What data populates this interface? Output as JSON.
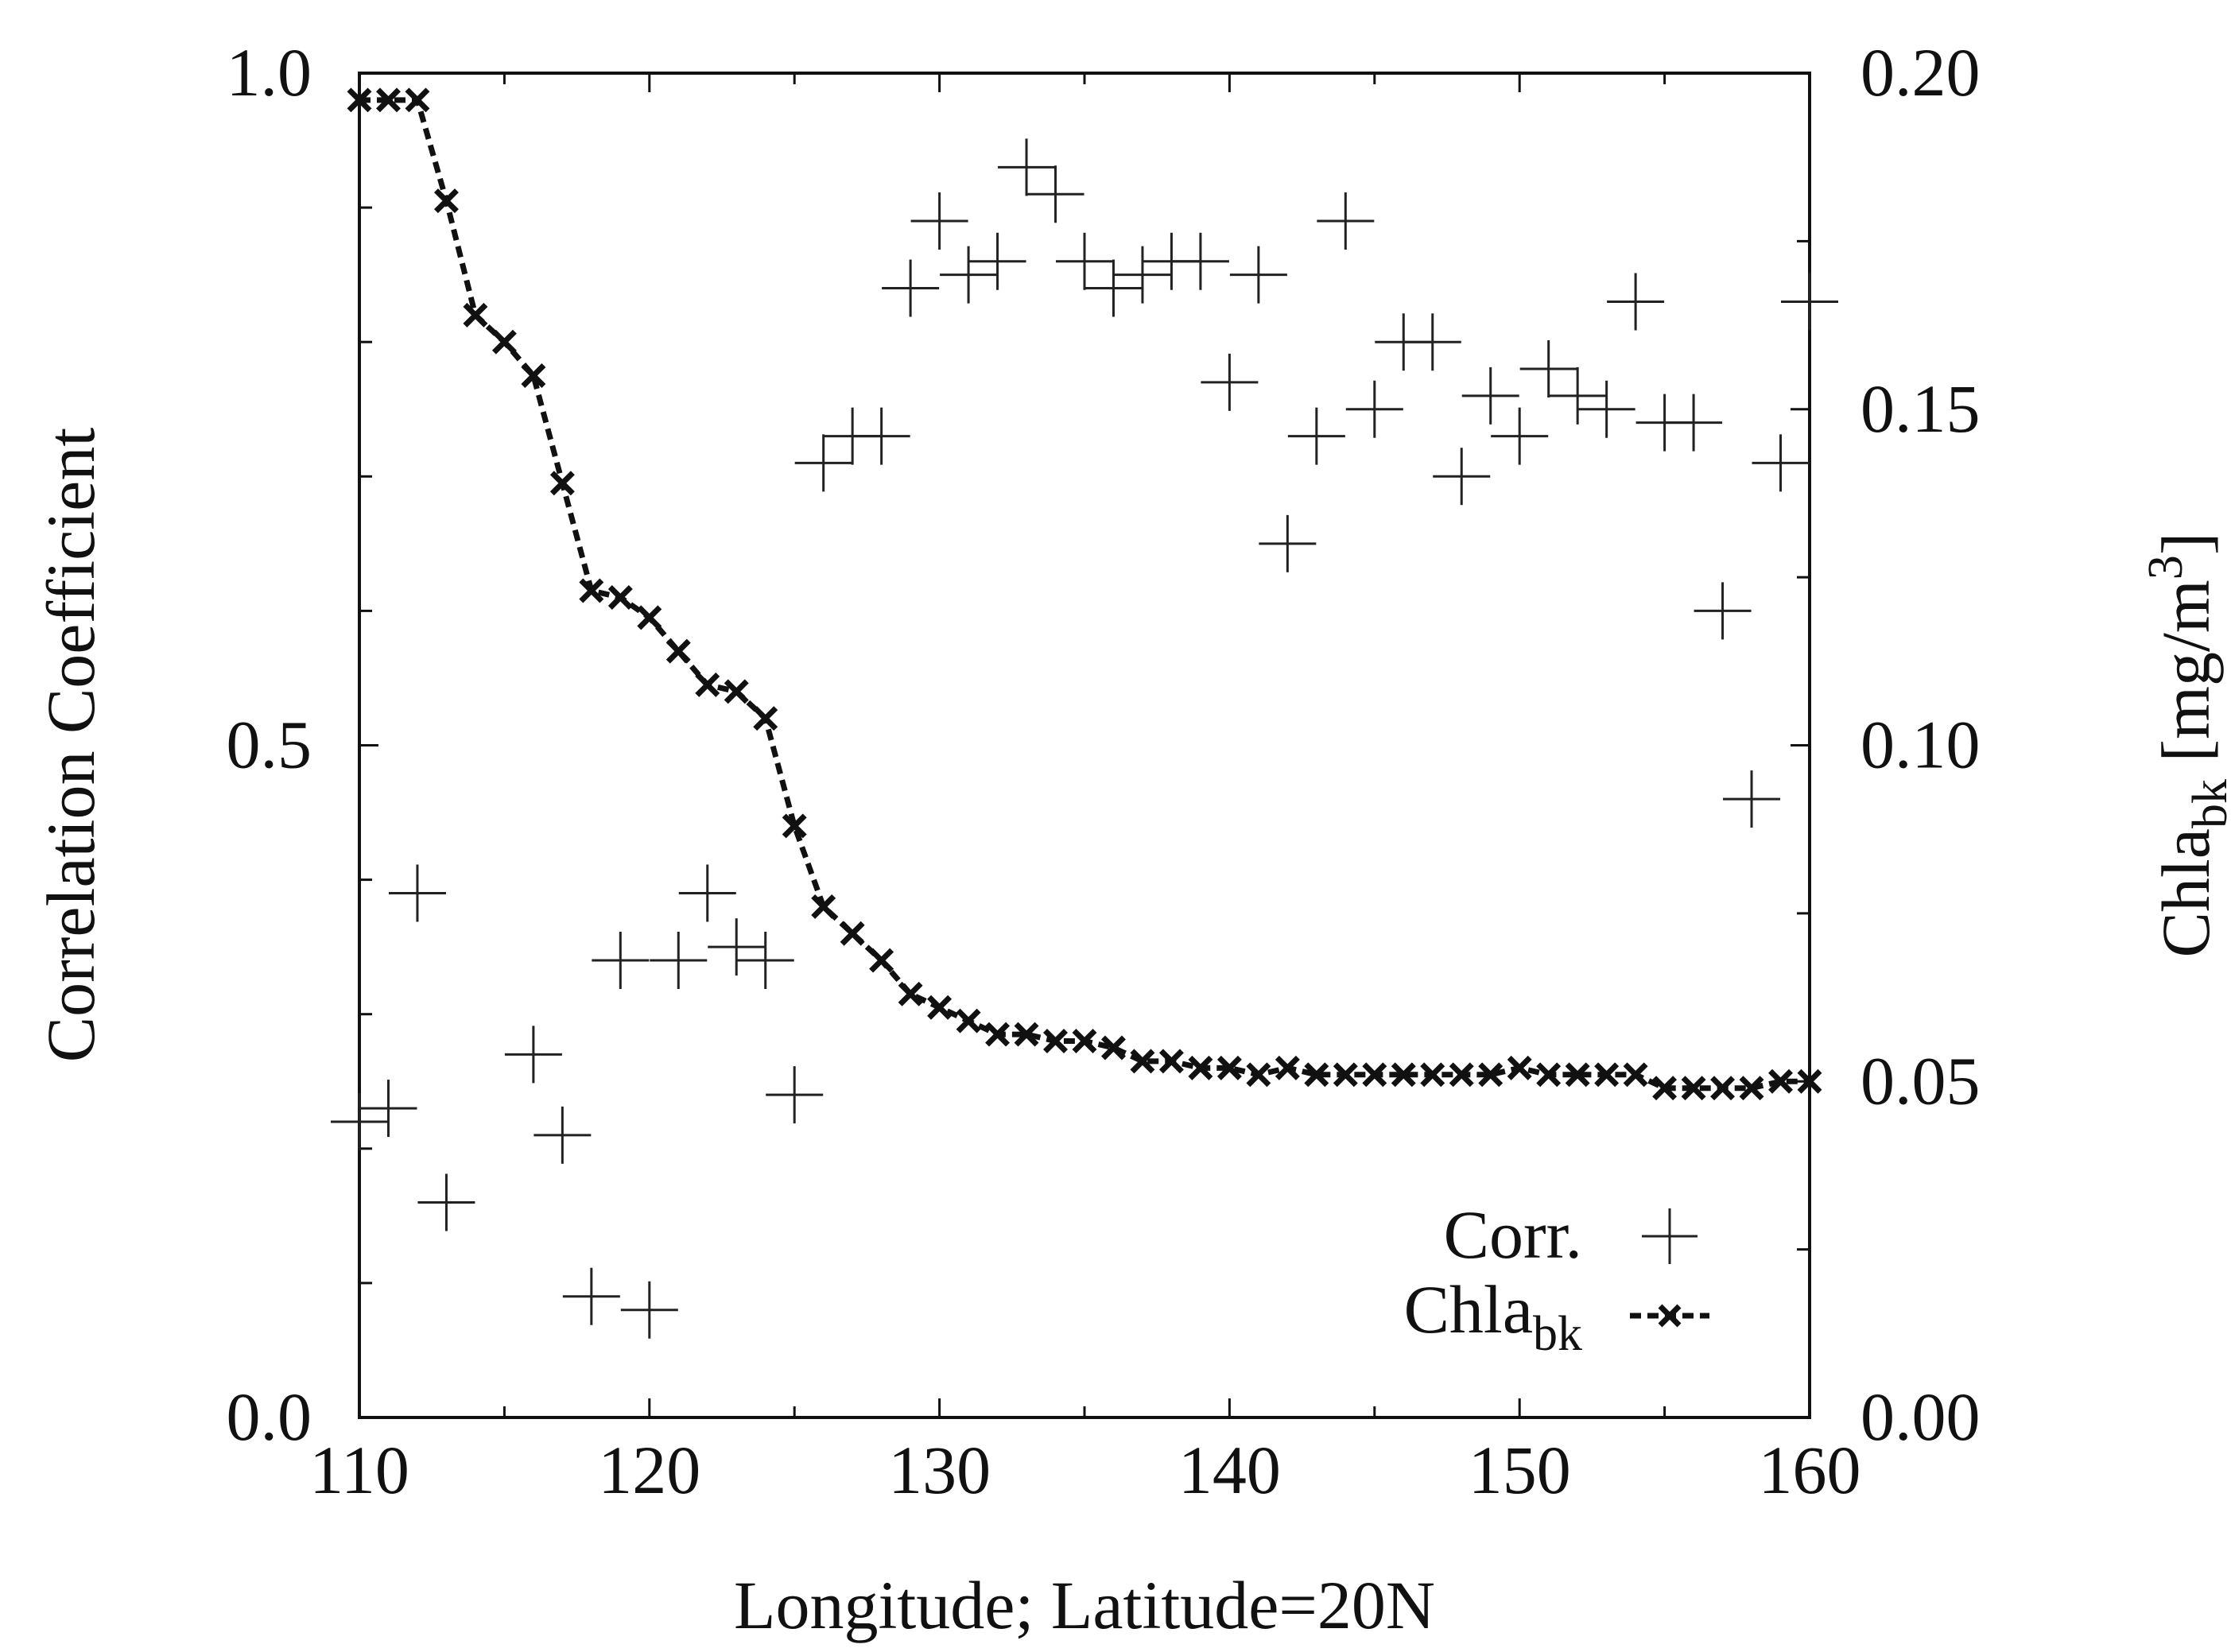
{
  "chart_data": {
    "type": "scatter",
    "xlabel": "Longitude; Latitude=20N",
    "ylabel_left": "Correlation Coefficient",
    "ylabel_right": {
      "base": "Chla",
      "sub": "bk",
      "unit_open": " [mg/m",
      "unit_sup": "3",
      "unit_close": "]"
    },
    "xlim": [
      110,
      160
    ],
    "ylim_left": [
      0.0,
      1.0
    ],
    "ylim_right": [
      0.0,
      0.2
    ],
    "x_ticks": [
      "110",
      "120",
      "130",
      "140",
      "150",
      "160"
    ],
    "y_left_ticks": [
      "0.0",
      "0.5",
      "1.0"
    ],
    "y_right_ticks": [
      "0.00",
      "0.05",
      "0.10",
      "0.15",
      "0.20"
    ],
    "legend": {
      "position": "bottom-right",
      "corr_label": "Corr.",
      "chla_base": "Chla",
      "chla_sub": "bk"
    },
    "series": [
      {
        "name": "Corr.",
        "axis": "left",
        "marker": "plus",
        "x": [
          110,
          111,
          112,
          113,
          116,
          117,
          118,
          119,
          120,
          121,
          122,
          123,
          124,
          125,
          126,
          127,
          128,
          129,
          130,
          131,
          132,
          133,
          134,
          135,
          136,
          137,
          138,
          139,
          140,
          141,
          142,
          143,
          144,
          145,
          146,
          147,
          148,
          149,
          150,
          151,
          152,
          153,
          154,
          155,
          156,
          157,
          158,
          159,
          160
        ],
        "y": [
          0.22,
          0.23,
          0.39,
          0.16,
          0.27,
          0.21,
          0.09,
          0.34,
          0.08,
          0.34,
          0.39,
          0.35,
          0.34,
          0.24,
          0.71,
          0.73,
          0.73,
          0.84,
          0.89,
          0.85,
          0.86,
          0.93,
          0.91,
          0.86,
          0.84,
          0.85,
          0.86,
          0.86,
          0.77,
          0.85,
          0.65,
          0.73,
          0.89,
          0.75,
          0.8,
          0.8,
          0.7,
          0.76,
          0.73,
          0.78,
          0.76,
          0.75,
          0.83,
          0.74,
          0.74,
          0.6,
          0.46,
          0.71,
          0.83
        ]
      },
      {
        "name": "Chla_bk",
        "axis": "right",
        "marker": "x",
        "line": "dashed",
        "x": [
          110,
          111,
          112,
          113,
          114,
          115,
          116,
          117,
          118,
          119,
          120,
          121,
          122,
          123,
          124,
          125,
          126,
          127,
          128,
          129,
          130,
          131,
          132,
          133,
          134,
          135,
          136,
          137,
          138,
          139,
          140,
          141,
          142,
          143,
          144,
          145,
          146,
          147,
          148,
          149,
          150,
          151,
          152,
          153,
          154,
          155,
          156,
          157,
          158,
          159,
          160
        ],
        "y": [
          0.196,
          0.196,
          0.196,
          0.181,
          0.164,
          0.16,
          0.155,
          0.139,
          0.123,
          0.122,
          0.119,
          0.114,
          0.109,
          0.108,
          0.104,
          0.088,
          0.076,
          0.072,
          0.068,
          0.063,
          0.061,
          0.059,
          0.057,
          0.057,
          0.056,
          0.056,
          0.055,
          0.053,
          0.053,
          0.052,
          0.052,
          0.051,
          0.052,
          0.051,
          0.051,
          0.051,
          0.051,
          0.051,
          0.051,
          0.051,
          0.052,
          0.051,
          0.051,
          0.051,
          0.051,
          0.049,
          0.049,
          0.049,
          0.049,
          0.05,
          0.05
        ]
      }
    ]
  }
}
